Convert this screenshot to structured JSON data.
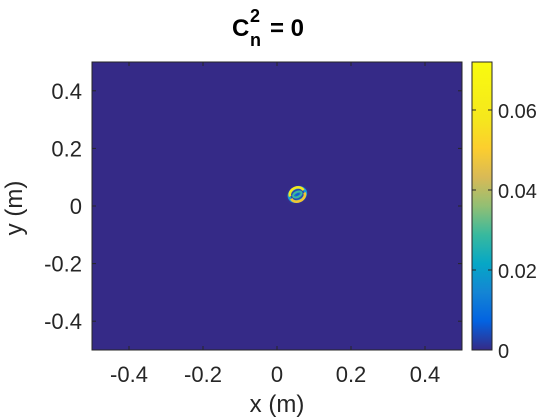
{
  "chart_data": {
    "type": "heatmap",
    "title": {
      "base": "C",
      "sup": "2",
      "sub": "n",
      "rest": "= 0"
    },
    "xlabel": "x (m)",
    "ylabel": "y (m)",
    "xlim": [
      -0.5,
      0.5
    ],
    "ylim": [
      -0.5,
      0.5
    ],
    "x_ticks": [
      -0.4,
      -0.2,
      0,
      0.2,
      0.4
    ],
    "x_tick_labels": [
      "-0.4",
      "-0.2",
      "0",
      "0.2",
      "0.4"
    ],
    "y_ticks": [
      0.4,
      0.2,
      0,
      -0.2,
      -0.4
    ],
    "y_tick_labels": [
      "0.4",
      "0.2",
      "0",
      "-0.2",
      "-0.4"
    ],
    "colorbar": {
      "colormap": "parula",
      "lim": [
        0,
        0.072
      ],
      "ticks": [
        0,
        0.02,
        0.04,
        0.06
      ],
      "tick_labels": [
        "0",
        "0.02",
        "0.04",
        "0.06"
      ]
    },
    "feature": {
      "description_center_m": [
        0.055,
        0.04
      ],
      "peak_value": 0.072,
      "ring_radius_m": 0.022,
      "orientation_deg": 25
    },
    "background_color": "#352a87"
  }
}
